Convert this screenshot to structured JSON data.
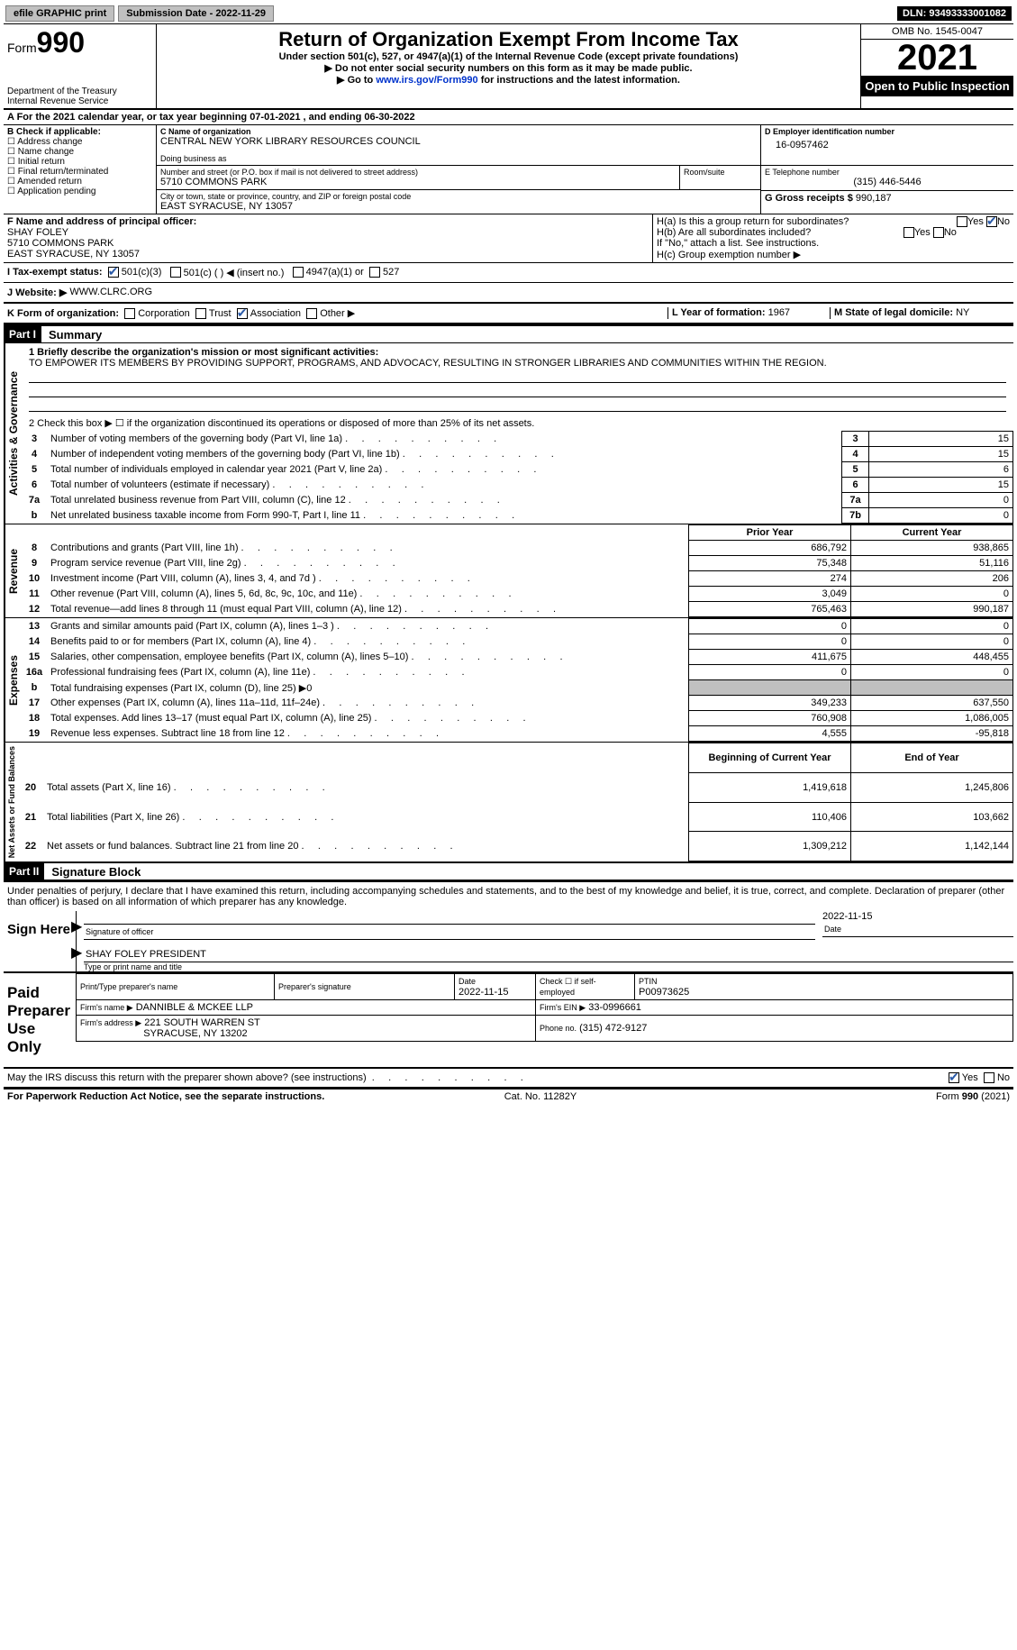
{
  "topbar": {
    "efile": "efile GRAPHIC print",
    "submission": "Submission Date - 2022-11-29",
    "dln": "DLN: 93493333001082"
  },
  "header": {
    "form": "Form",
    "formNum": "990",
    "dept": "Department of the Treasury",
    "irs": "Internal Revenue Service",
    "title": "Return of Organization Exempt From Income Tax",
    "subtitle": "Under section 501(c), 527, or 4947(a)(1) of the Internal Revenue Code (except private foundations)",
    "note": "▶ Do not enter social security numbers on this form as it may be made public.",
    "gotoPrefix": "▶ Go to ",
    "gotoLink": "www.irs.gov/Form990",
    "gotoSuffix": " for instructions and the latest information.",
    "omb": "OMB No. 1545-0047",
    "year": "2021",
    "open": "Open to Public Inspection"
  },
  "A": {
    "text": "A For the 2021 calendar year, or tax year beginning 07-01-2021    , and ending 06-30-2022"
  },
  "B": {
    "hdr": "B Check if applicable:",
    "items": [
      "Address change",
      "Name change",
      "Initial return",
      "Final return/terminated",
      "Amended return",
      "Application pending"
    ]
  },
  "C": {
    "nameLabel": "C Name of organization",
    "name": "CENTRAL NEW YORK LIBRARY RESOURCES COUNCIL",
    "dbaLabel": "Doing business as",
    "dba": "",
    "addrLabel": "Number and street (or P.O. box if mail is not delivered to street address)",
    "roomLabel": "Room/suite",
    "addr": "5710 COMMONS PARK",
    "cityLabel": "City or town, state or province, country, and ZIP or foreign postal code",
    "city": "EAST SYRACUSE, NY  13057"
  },
  "D": {
    "label": "D Employer identification number",
    "val": "16-0957462"
  },
  "E": {
    "label": "E Telephone number",
    "val": "(315) 446-5446"
  },
  "G": {
    "label": "G Gross receipts $",
    "val": "990,187"
  },
  "F": {
    "label": "F  Name and address of principal officer:",
    "name": "SHAY FOLEY",
    "addr1": "5710 COMMONS PARK",
    "addr2": "EAST SYRACUSE, NY  13057"
  },
  "H": {
    "a": "H(a)  Is this a group return for subordinates?",
    "b": "H(b)  Are all subordinates included?",
    "bnote": "If \"No,\" attach a list. See instructions.",
    "c": "H(c)  Group exemption number ▶",
    "yes": "Yes",
    "no": "No"
  },
  "I": {
    "label": "I   Tax-exempt status:",
    "opts": [
      "501(c)(3)",
      "501(c) (  ) ◀ (insert no.)",
      "4947(a)(1) or",
      "527"
    ]
  },
  "J": {
    "label": "J   Website: ▶",
    "val": "WWW.CLRC.ORG"
  },
  "K": {
    "label": "K Form of organization:",
    "opts": [
      "Corporation",
      "Trust",
      "Association",
      "Other ▶"
    ]
  },
  "L": {
    "label": "L Year of formation:",
    "val": "1967"
  },
  "M": {
    "label": "M State of legal domicile:",
    "val": "NY"
  },
  "partI": {
    "bar": "Part I",
    "title": "Summary"
  },
  "summary": {
    "l1label": "1   Briefly describe the organization's mission or most significant activities:",
    "l1": "TO EMPOWER ITS MEMBERS BY PROVIDING SUPPORT, PROGRAMS, AND ADVOCACY, RESULTING IN STRONGER LIBRARIES AND COMMUNITIES WITHIN THE REGION.",
    "l2": "2    Check this box ▶ ☐  if the organization discontinued its operations or disposed of more than 25% of its net assets.",
    "rows": [
      {
        "n": "3",
        "t": "Number of voting members of the governing body (Part VI, line 1a)",
        "c": "3",
        "v": "15"
      },
      {
        "n": "4",
        "t": "Number of independent voting members of the governing body (Part VI, line 1b)",
        "c": "4",
        "v": "15"
      },
      {
        "n": "5",
        "t": "Total number of individuals employed in calendar year 2021 (Part V, line 2a)",
        "c": "5",
        "v": "6"
      },
      {
        "n": "6",
        "t": "Total number of volunteers (estimate if necessary)",
        "c": "6",
        "v": "15"
      },
      {
        "n": "7a",
        "t": "Total unrelated business revenue from Part VIII, column (C), line 12",
        "c": "7a",
        "v": "0"
      },
      {
        "n": "b",
        "t": "Net unrelated business taxable income from Form 990-T, Part I, line 11",
        "c": "7b",
        "v": "0"
      }
    ],
    "hdrPrior": "Prior Year",
    "hdrCurrent": "Current Year",
    "revenue": [
      {
        "n": "8",
        "t": "Contributions and grants (Part VIII, line 1h)",
        "p": "686,792",
        "c": "938,865"
      },
      {
        "n": "9",
        "t": "Program service revenue (Part VIII, line 2g)",
        "p": "75,348",
        "c": "51,116"
      },
      {
        "n": "10",
        "t": "Investment income (Part VIII, column (A), lines 3, 4, and 7d )",
        "p": "274",
        "c": "206"
      },
      {
        "n": "11",
        "t": "Other revenue (Part VIII, column (A), lines 5, 6d, 8c, 9c, 10c, and 11e)",
        "p": "3,049",
        "c": "0"
      },
      {
        "n": "12",
        "t": "Total revenue—add lines 8 through 11 (must equal Part VIII, column (A), line 12)",
        "p": "765,463",
        "c": "990,187"
      }
    ],
    "expenses": [
      {
        "n": "13",
        "t": "Grants and similar amounts paid (Part IX, column (A), lines 1–3 )",
        "p": "0",
        "c": "0"
      },
      {
        "n": "14",
        "t": "Benefits paid to or for members (Part IX, column (A), line 4)",
        "p": "0",
        "c": "0"
      },
      {
        "n": "15",
        "t": "Salaries, other compensation, employee benefits (Part IX, column (A), lines 5–10)",
        "p": "411,675",
        "c": "448,455"
      },
      {
        "n": "16a",
        "t": "Professional fundraising fees (Part IX, column (A), line 11e)",
        "p": "0",
        "c": "0"
      },
      {
        "n": "b",
        "t": "Total fundraising expenses (Part IX, column (D), line 25) ▶0",
        "p": "",
        "c": "",
        "grey": true
      },
      {
        "n": "17",
        "t": "Other expenses (Part IX, column (A), lines 11a–11d, 11f–24e)",
        "p": "349,233",
        "c": "637,550"
      },
      {
        "n": "18",
        "t": "Total expenses. Add lines 13–17 (must equal Part IX, column (A), line 25)",
        "p": "760,908",
        "c": "1,086,005"
      },
      {
        "n": "19",
        "t": "Revenue less expenses. Subtract line 18 from line 12",
        "p": "4,555",
        "c": "-95,818"
      }
    ],
    "hdrBegin": "Beginning of Current Year",
    "hdrEnd": "End of Year",
    "net": [
      {
        "n": "20",
        "t": "Total assets (Part X, line 16)",
        "p": "1,419,618",
        "c": "1,245,806"
      },
      {
        "n": "21",
        "t": "Total liabilities (Part X, line 26)",
        "p": "110,406",
        "c": "103,662"
      },
      {
        "n": "22",
        "t": "Net assets or fund balances. Subtract line 21 from line 20",
        "p": "1,309,212",
        "c": "1,142,144"
      }
    ],
    "vlabels": {
      "gov": "Activities & Governance",
      "rev": "Revenue",
      "exp": "Expenses",
      "net": "Net Assets or Fund Balances"
    }
  },
  "partII": {
    "bar": "Part II",
    "title": "Signature Block"
  },
  "sig": {
    "decl": "Under penalties of perjury, I declare that I have examined this return, including accompanying schedules and statements, and to the best of my knowledge and belief, it is true, correct, and complete. Declaration of preparer (other than officer) is based on all information of which preparer has any knowledge.",
    "signHere": "Sign Here",
    "sigOfficer": "Signature of officer",
    "date": "2022-11-15",
    "dateLbl": "Date",
    "name": "SHAY FOLEY  PRESIDENT",
    "nameLbl": "Type or print name and title",
    "paid": "Paid Preparer Use Only",
    "prepName": "Print/Type preparer's name",
    "prepSig": "Preparer's signature",
    "prepDate": "Date",
    "prepDateVal": "2022-11-15",
    "checkSelf": "Check ☐ if self-employed",
    "ptin": "PTIN",
    "ptinVal": "P00973625",
    "firmName": "Firm's name    ▶",
    "firmNameVal": "DANNIBLE & MCKEE LLP",
    "firmEin": "Firm's EIN ▶",
    "firmEinVal": "33-0996661",
    "firmAddr": "Firm's address ▶",
    "firmAddrVal1": "221 SOUTH WARREN ST",
    "firmAddrVal2": "SYRACUSE, NY  13202",
    "phone": "Phone no.",
    "phoneVal": "(315) 472-9127",
    "mayIRS": "May the IRS discuss this return with the preparer shown above? (see instructions)"
  },
  "footer": {
    "pra": "For Paperwork Reduction Act Notice, see the separate instructions.",
    "cat": "Cat. No. 11282Y",
    "form": "Form 990 (2021)"
  }
}
